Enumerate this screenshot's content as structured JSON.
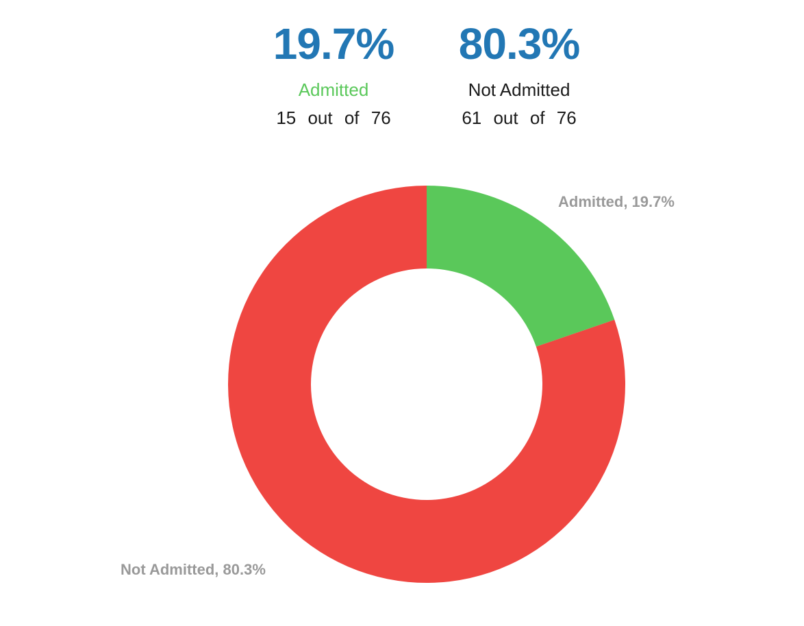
{
  "summary": [
    {
      "percent": "19.7%",
      "label": "Admitted",
      "label_color": "#5ac85a",
      "count_text": "15 out of 76"
    },
    {
      "percent": "80.3%",
      "label": "Not Admitted",
      "label_color": "#1a1a1a",
      "count_text": "61 out of 76"
    }
  ],
  "slice_labels": {
    "admitted": "Admitted, 19.7%",
    "not_admitted": "Not Admitted, 80.3%"
  },
  "chart_data": {
    "type": "pie",
    "subtype": "donut",
    "categories": [
      "Admitted",
      "Not Admitted"
    ],
    "values": [
      15,
      61
    ],
    "percentages": [
      19.7,
      80.3
    ],
    "total": 76,
    "colors": [
      "#5ac85a",
      "#ef4641"
    ],
    "data_labels": [
      "Admitted, 19.7%",
      "Not Admitted, 80.3%"
    ],
    "title": "",
    "legend": "none"
  }
}
